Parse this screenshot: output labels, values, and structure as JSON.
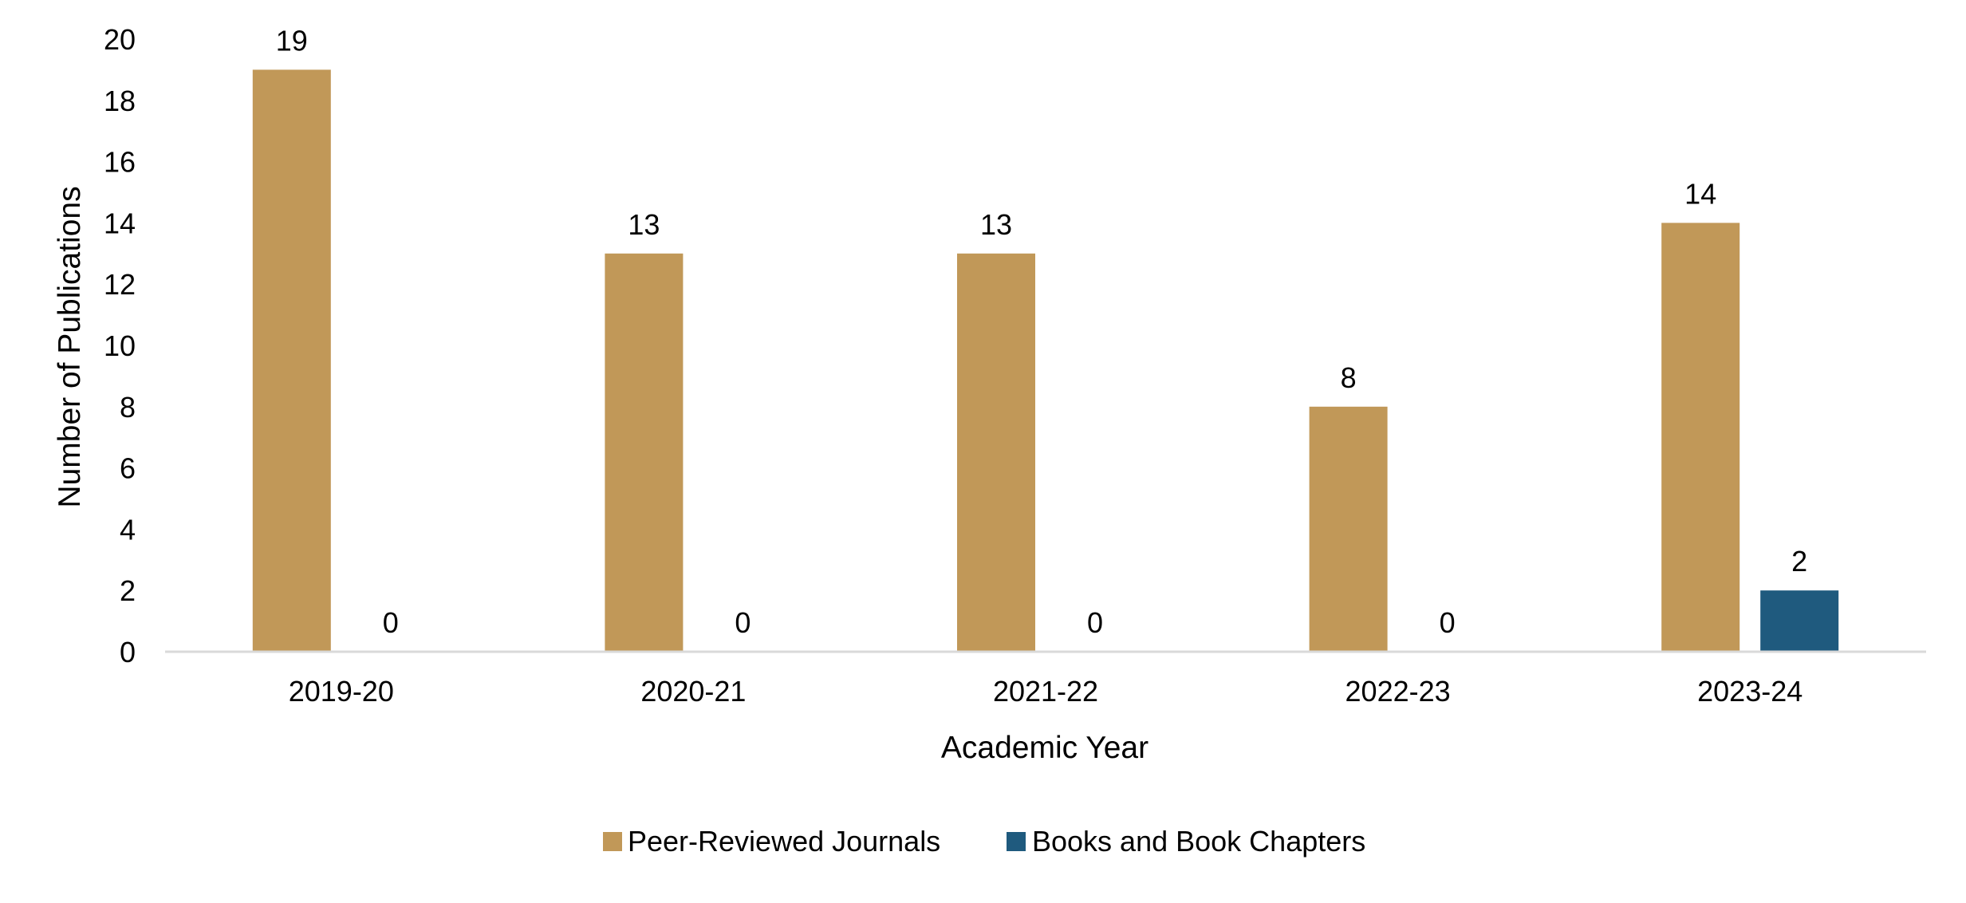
{
  "chart_data": {
    "type": "bar",
    "title": "",
    "xlabel": "Academic Year",
    "ylabel": "Number of Publications",
    "categories": [
      "2019-20",
      "2020-21",
      "2021-22",
      "2022-23",
      "2023-24"
    ],
    "series": [
      {
        "name": "Peer-Reviewed Journals",
        "values": [
          19,
          13,
          13,
          8,
          14
        ],
        "color": "#C19858"
      },
      {
        "name": "Books and Book Chapters",
        "values": [
          0,
          0,
          0,
          0,
          2
        ],
        "color": "#1F5A7E"
      }
    ],
    "ylim": [
      0,
      20
    ],
    "yticks": [
      0,
      2,
      4,
      6,
      8,
      10,
      12,
      14,
      16,
      18,
      20
    ],
    "grid": false,
    "data_labels": true,
    "legend_position": "bottom"
  }
}
